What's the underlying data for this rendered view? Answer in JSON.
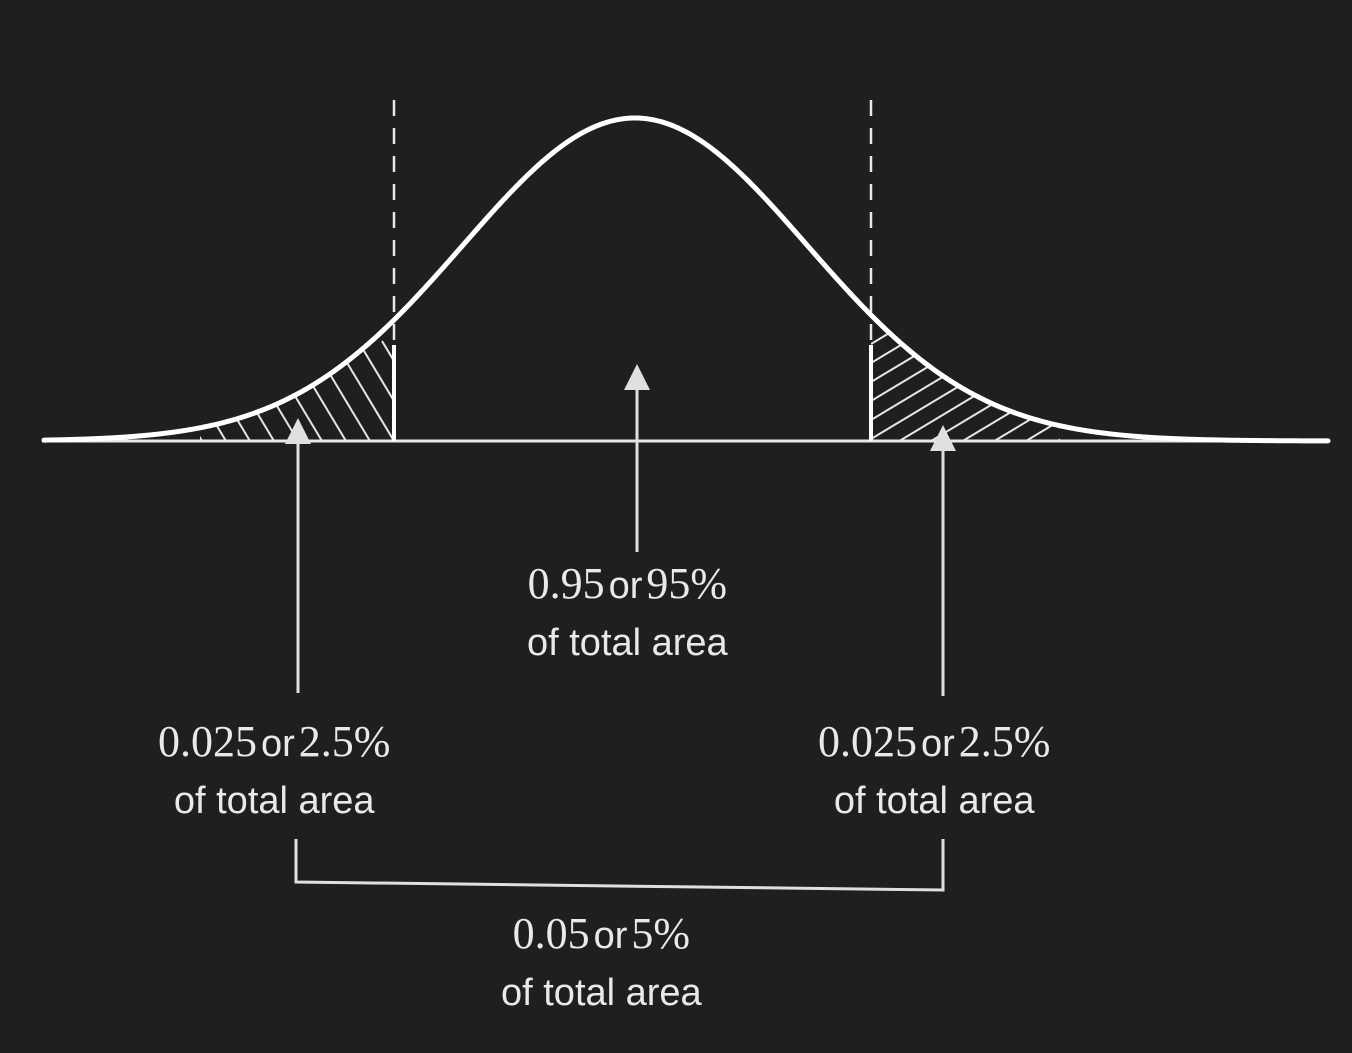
{
  "center_label": {
    "value_a": "0.95",
    "connector": "or",
    "value_b": "95%",
    "caption": "of total area"
  },
  "left_tail_label": {
    "value_a": "0.025",
    "connector": "or",
    "value_b": "2.5%",
    "caption": "of total area"
  },
  "right_tail_label": {
    "value_a": "0.025",
    "connector": "or",
    "value_b": "2.5%",
    "caption": "of total area"
  },
  "both_tails_label": {
    "value_a": "0.05",
    "connector": "or",
    "value_b": "5%",
    "caption": "of total area"
  },
  "colors": {
    "background": "#1f1f1f",
    "curve": "#ffffff",
    "annotation": "#e0e0e0",
    "text": "#e9e9e9"
  }
}
